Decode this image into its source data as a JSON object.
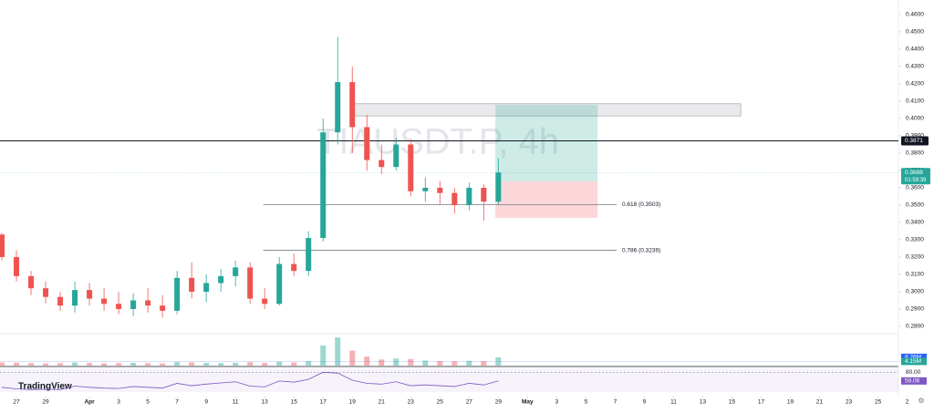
{
  "chart_data": {
    "type": "candlestick",
    "title": "TIAUSDT.P, 4h",
    "brand": "TradingView",
    "up_color": "#26a69a",
    "down_color": "#ef5350",
    "x": [
      -1,
      0,
      1,
      2,
      3,
      4,
      5,
      6,
      7,
      8,
      9,
      10,
      11,
      12,
      13,
      14,
      15,
      16,
      17,
      18,
      19,
      20,
      21,
      22,
      23,
      24,
      25,
      26,
      27,
      28,
      29,
      30,
      31,
      32,
      33
    ],
    "open": [
      0.333,
      0.32,
      0.309,
      0.302,
      0.297,
      0.292,
      0.301,
      0.296,
      0.293,
      0.29,
      0.295,
      0.292,
      0.289,
      0.308,
      0.3,
      0.305,
      0.309,
      0.314,
      0.296,
      0.293,
      0.316,
      0.312,
      0.331,
      0.392,
      0.421,
      0.395,
      0.376,
      0.372,
      0.385,
      0.358,
      0.36,
      0.357,
      0.35,
      0.36,
      0.352
    ],
    "high": [
      0.334,
      0.324,
      0.312,
      0.306,
      0.3,
      0.306,
      0.305,
      0.302,
      0.3,
      0.299,
      0.302,
      0.298,
      0.312,
      0.317,
      0.31,
      0.313,
      0.318,
      0.317,
      0.302,
      0.32,
      0.322,
      0.335,
      0.4,
      0.447,
      0.43,
      0.402,
      0.385,
      0.389,
      0.388,
      0.366,
      0.364,
      0.36,
      0.363,
      0.362,
      0.377
    ],
    "low": [
      0.318,
      0.306,
      0.298,
      0.293,
      0.289,
      0.288,
      0.292,
      0.289,
      0.287,
      0.286,
      0.288,
      0.285,
      0.287,
      0.296,
      0.294,
      0.3,
      0.303,
      0.293,
      0.29,
      0.292,
      0.309,
      0.309,
      0.329,
      0.385,
      0.38,
      0.37,
      0.368,
      0.37,
      0.355,
      0.352,
      0.35,
      0.345,
      0.347,
      0.341,
      0.35
    ],
    "close": [
      0.32,
      0.309,
      0.302,
      0.297,
      0.292,
      0.301,
      0.296,
      0.293,
      0.29,
      0.295,
      0.292,
      0.289,
      0.308,
      0.3,
      0.305,
      0.309,
      0.314,
      0.296,
      0.293,
      0.316,
      0.312,
      0.331,
      0.392,
      0.421,
      0.395,
      0.376,
      0.372,
      0.385,
      0.358,
      0.36,
      0.357,
      0.35,
      0.36,
      0.352,
      0.3688
    ],
    "xlim": [
      -1.125,
      60.4
    ],
    "ylim": [
      0.2763,
      0.4684
    ],
    "xticks": [
      {
        "value": 0,
        "label": "27"
      },
      {
        "value": 2,
        "label": "29"
      },
      {
        "value": 5,
        "label": "Apr"
      },
      {
        "value": 7,
        "label": "3"
      },
      {
        "value": 9,
        "label": "5"
      },
      {
        "value": 11,
        "label": "7"
      },
      {
        "value": 13,
        "label": "9"
      },
      {
        "value": 15,
        "label": "11"
      },
      {
        "value": 17,
        "label": "13"
      },
      {
        "value": 19,
        "label": "15"
      },
      {
        "value": 21,
        "label": "17"
      },
      {
        "value": 23,
        "label": "19"
      },
      {
        "value": 25,
        "label": "21"
      },
      {
        "value": 27,
        "label": "23"
      },
      {
        "value": 29,
        "label": "25"
      },
      {
        "value": 31,
        "label": "27"
      },
      {
        "value": 33,
        "label": "29"
      },
      {
        "value": 35,
        "label": "May"
      },
      {
        "value": 37,
        "label": "3"
      },
      {
        "value": 39,
        "label": "5"
      },
      {
        "value": 41,
        "label": "7"
      },
      {
        "value": 43,
        "label": "9"
      },
      {
        "value": 45,
        "label": "11"
      },
      {
        "value": 47,
        "label": "13"
      },
      {
        "value": 49,
        "label": "15"
      },
      {
        "value": 51,
        "label": "17"
      },
      {
        "value": 53,
        "label": "19"
      },
      {
        "value": 55,
        "label": "21"
      },
      {
        "value": 57,
        "label": "23"
      },
      {
        "value": 59,
        "label": "25"
      },
      {
        "value": 61,
        "label": "2"
      }
    ],
    "yticks": [
      {
        "value": 0.28,
        "label": "0.2800"
      },
      {
        "value": 0.29,
        "label": "0.2900"
      },
      {
        "value": 0.3,
        "label": "0.3000"
      },
      {
        "value": 0.31,
        "label": "0.3100"
      },
      {
        "value": 0.32,
        "label": "0.3200"
      },
      {
        "value": 0.33,
        "label": "0.3300"
      },
      {
        "value": 0.34,
        "label": "0.3400"
      },
      {
        "value": 0.35,
        "label": "0.3500"
      },
      {
        "value": 0.36,
        "label": "0.3600"
      },
      {
        "value": 0.37,
        "label": "0.3700"
      },
      {
        "value": 0.38,
        "label": "0.3800"
      },
      {
        "value": 0.39,
        "label": "0.3900"
      },
      {
        "value": 0.4,
        "label": "0.4000"
      },
      {
        "value": 0.41,
        "label": "0.4100"
      },
      {
        "value": 0.42,
        "label": "0.4200"
      },
      {
        "value": 0.43,
        "label": "0.4300"
      },
      {
        "value": 0.44,
        "label": "0.4400"
      },
      {
        "value": 0.45,
        "label": "0.4500"
      },
      {
        "value": 0.46,
        "label": "0.4600"
      }
    ],
    "price_line": {
      "value": 0.3871,
      "label": "0.3871"
    },
    "last_price": {
      "value": 0.3688,
      "label": "0.3688",
      "countdown": "01:59:39"
    },
    "fib_levels": [
      {
        "value": 0.3503,
        "label": "0.618 (0.3503)",
        "x": [
          16.9,
          41.1
        ]
      },
      {
        "value": 0.3239,
        "label": "0.786 (0.3239)",
        "x": [
          16.9,
          41.1
        ]
      }
    ],
    "zone": {
      "low": 0.4015,
      "high": 0.4085,
      "x": [
        22.9,
        49.6
      ]
    },
    "position": {
      "target": 0.4079,
      "entry": 0.3637,
      "stop": 0.3426,
      "x": [
        32.8,
        39.8
      ]
    },
    "volume": {
      "values": [
        3.1,
        2.8,
        2.5,
        2.2,
        2.4,
        3.0,
        2.6,
        2.3,
        2.5,
        2.7,
        2.4,
        2.2,
        3.5,
        3.2,
        2.6,
        2.5,
        2.8,
        3.4,
        2.6,
        3.8,
        3.0,
        4.5,
        20,
        28,
        15,
        9,
        6,
        7,
        6.5,
        5,
        4.5,
        4.2,
        4.8,
        4.4,
        8.26
      ],
      "ylim": [
        0,
        30
      ],
      "value_label": "8.26M",
      "ma": 4.15,
      "ma_label": "4.15M"
    },
    "rsi": {
      "values": [
        42,
        38,
        36,
        37,
        36,
        45,
        42,
        40,
        39,
        44,
        42,
        40,
        52,
        46,
        50,
        53,
        56,
        45,
        43,
        58,
        55,
        62,
        80,
        78,
        60,
        52,
        50,
        56,
        46,
        48,
        46,
        44,
        52,
        48,
        58.06
      ],
      "ylim": [
        30,
        90
      ],
      "ticks": [
        {
          "value": 80,
          "label": "80.00"
        }
      ],
      "value_label": "58.06"
    }
  }
}
